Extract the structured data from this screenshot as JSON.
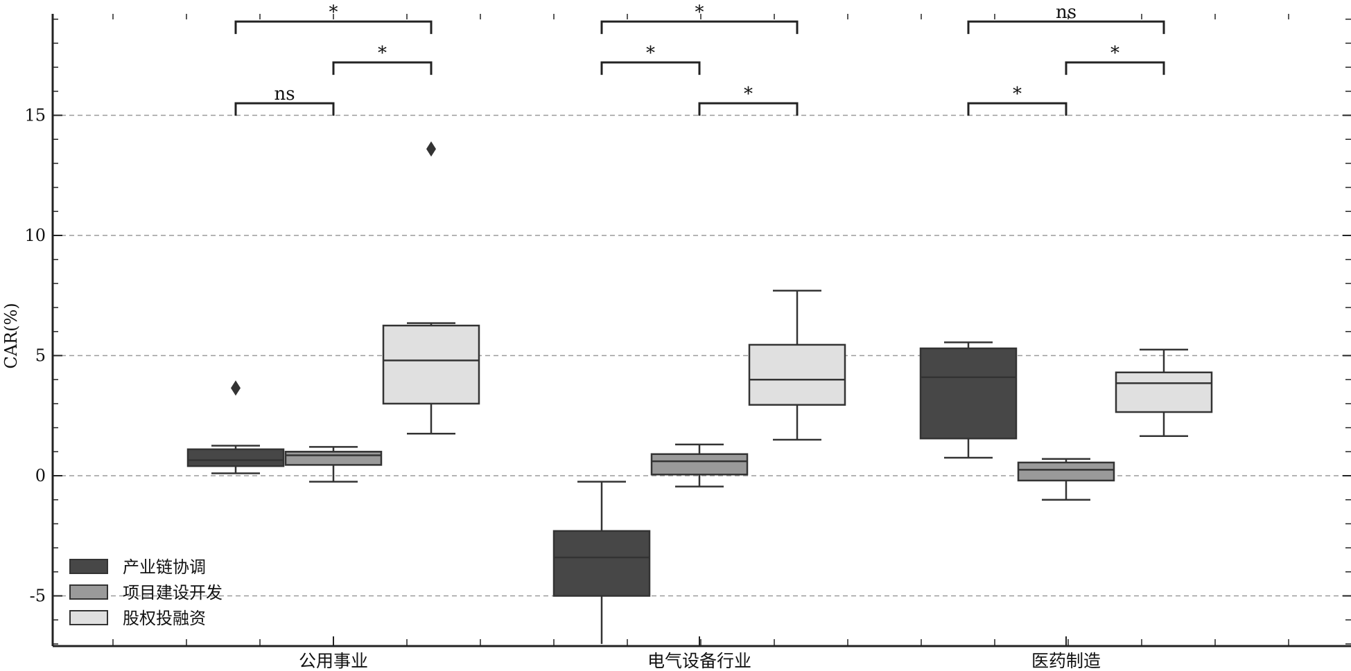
{
  "chart_data": {
    "type": "box",
    "title": "",
    "xlabel": "",
    "ylabel": "CAR(%)",
    "ylim": [
      -7,
      19.5
    ],
    "yticks": [
      -5,
      0,
      5,
      10,
      15
    ],
    "ytick_labels": [
      "-5",
      "0",
      "5",
      "10",
      "15"
    ],
    "grid": "horizontal dashed",
    "legend_position": "bottom-left",
    "categories": [
      "公用事业",
      "电气设备行业",
      "医药制造"
    ],
    "series": [
      {
        "name": "产业链协调",
        "color": "#474747",
        "boxes": [
          {
            "category": "公用事业",
            "whisker_low": 0.1,
            "q1": 0.4,
            "median": 0.65,
            "q3": 1.1,
            "whisker_high": 1.25,
            "outliers": [
              3.65
            ]
          },
          {
            "category": "电气设备行业",
            "whisker_low": -7.0,
            "q1": -5.0,
            "median": -3.4,
            "q3": -2.3,
            "whisker_high": -0.25,
            "outliers": []
          },
          {
            "category": "医药制造",
            "whisker_low": 0.75,
            "q1": 1.55,
            "median": 4.1,
            "q3": 5.3,
            "whisker_high": 5.55,
            "outliers": []
          }
        ]
      },
      {
        "name": "项目建设开发",
        "color": "#9a9a9a",
        "boxes": [
          {
            "category": "公用事业",
            "whisker_low": -0.25,
            "q1": 0.45,
            "median": 0.85,
            "q3": 1.0,
            "whisker_high": 1.2,
            "outliers": []
          },
          {
            "category": "电气设备行业",
            "whisker_low": -0.45,
            "q1": 0.05,
            "median": 0.6,
            "q3": 0.9,
            "whisker_high": 1.3,
            "outliers": []
          },
          {
            "category": "医药制造",
            "whisker_low": -1.0,
            "q1": -0.2,
            "median": 0.25,
            "q3": 0.55,
            "whisker_high": 0.7,
            "outliers": []
          }
        ]
      },
      {
        "name": "股权投融资",
        "color": "#e0e0e0",
        "boxes": [
          {
            "category": "公用事业",
            "whisker_low": 1.75,
            "q1": 3.0,
            "median": 4.8,
            "q3": 6.25,
            "whisker_high": 6.35,
            "outliers": [
              13.6
            ]
          },
          {
            "category": "电气设备行业",
            "whisker_low": 1.5,
            "q1": 2.95,
            "median": 4.0,
            "q3": 5.45,
            "whisker_high": 7.7,
            "outliers": []
          },
          {
            "category": "医药制造",
            "whisker_low": 1.65,
            "q1": 2.65,
            "median": 3.85,
            "q3": 4.3,
            "whisker_high": 5.25,
            "outliers": []
          }
        ]
      }
    ],
    "significance": [
      {
        "category": "公用事业",
        "from": 0,
        "to": 2,
        "level": 18.9,
        "label": "*"
      },
      {
        "category": "公用事业",
        "from": 1,
        "to": 2,
        "level": 17.2,
        "label": "*"
      },
      {
        "category": "公用事业",
        "from": 0,
        "to": 1,
        "level": 15.5,
        "label": "ns"
      },
      {
        "category": "电气设备行业",
        "from": 0,
        "to": 2,
        "level": 18.9,
        "label": "*"
      },
      {
        "category": "电气设备行业",
        "from": 0,
        "to": 1,
        "level": 17.2,
        "label": "*"
      },
      {
        "category": "电气设备行业",
        "from": 1,
        "to": 2,
        "level": 15.5,
        "label": "*"
      },
      {
        "category": "医药制造",
        "from": 0,
        "to": 2,
        "level": 18.9,
        "label": "ns"
      },
      {
        "category": "医药制造",
        "from": 1,
        "to": 2,
        "level": 17.2,
        "label": "*"
      },
      {
        "category": "医药制造",
        "from": 0,
        "to": 1,
        "level": 15.5,
        "label": "*"
      }
    ]
  }
}
